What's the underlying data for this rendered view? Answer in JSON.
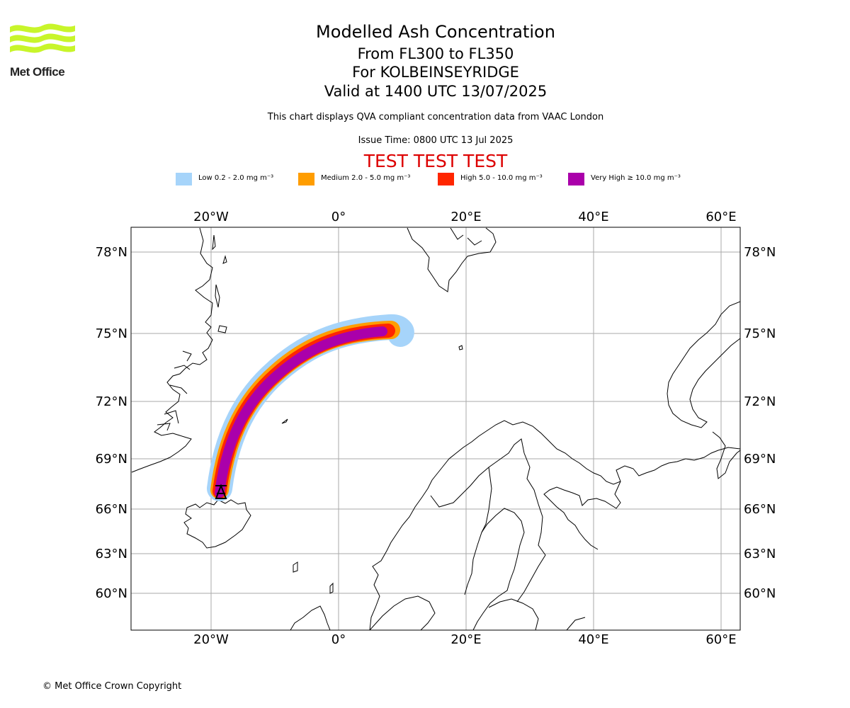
{
  "logo": {
    "text": "Met Office",
    "colors": {
      "waves": "#c8f52a",
      "text": "#222222"
    }
  },
  "header": {
    "title": "Modelled Ash Concentration",
    "flight_levels": "From FL300 to FL350",
    "volcano": "For KOLBEINSEYRIDGE",
    "valid_time": "Valid at 1400 UTC 13/07/2025",
    "description": "This chart displays QVA compliant concentration data from VAAC London",
    "issue_time": "Issue Time: 0800 UTC 13 Jul 2025",
    "test_banner": "TEST TEST TEST"
  },
  "legend": [
    {
      "label": "Low 0.2 - 2.0 mg m⁻³",
      "color": "#a6d4fa"
    },
    {
      "label": "Medium 2.0 - 5.0 mg m⁻³",
      "color": "#ff9d00"
    },
    {
      "label": "High 5.0 - 10.0 mg m⁻³",
      "color": "#ff2600"
    },
    {
      "label": "Very High  ≥  10.0 mg m⁻³",
      "color": "#aa00aa"
    }
  ],
  "map": {
    "lon_ticks": [
      "20°W",
      "0°",
      "20°E",
      "40°E",
      "60°E"
    ],
    "lat_ticks": [
      "78°N",
      "75°N",
      "72°N",
      "69°N",
      "66°N",
      "63°N",
      "60°N"
    ],
    "lon_values": [
      -20,
      0,
      20,
      40,
      60
    ],
    "lat_values": [
      78,
      75,
      72,
      69,
      66,
      63,
      60
    ],
    "source_marker": "volcano-symbol",
    "colors": {
      "gridline": "#aaaaaa",
      "coastline": "#000000",
      "frame": "#000000"
    }
  },
  "footer": {
    "copyright": "© Met Office Crown Copyright"
  }
}
